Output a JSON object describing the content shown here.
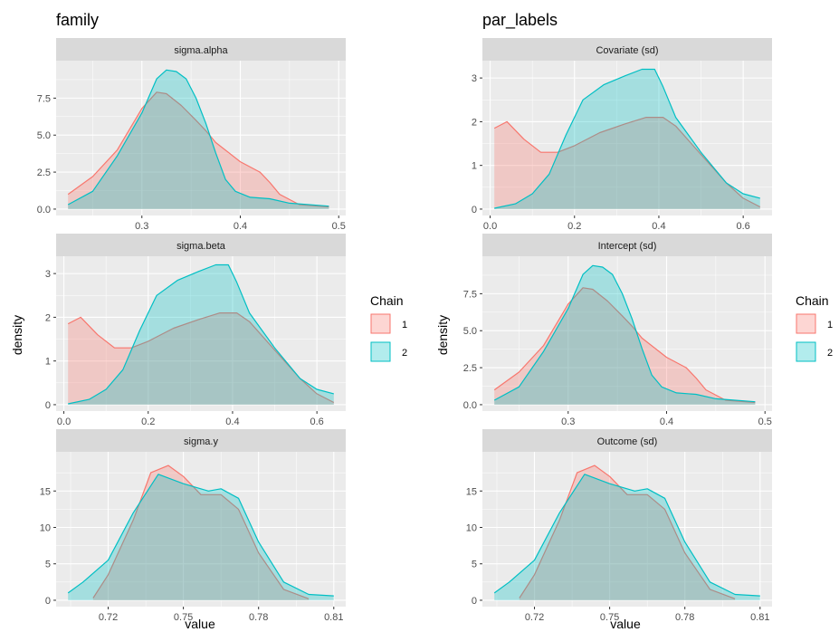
{
  "plots": [
    {
      "title": "family",
      "ylabel": "density",
      "xlabel": "value"
    },
    {
      "title": "par_labels",
      "ylabel": "density",
      "xlabel": "value"
    }
  ],
  "legend": {
    "title": "Chain",
    "entries": [
      {
        "label": "1",
        "fill": "#F8766D",
        "line": "#F8766D"
      },
      {
        "label": "2",
        "fill": "#00BFC4",
        "line": "#00BFC4"
      }
    ]
  },
  "colors": {
    "panel_bg": "#EBEBEB",
    "strip_bg": "#D9D9D9",
    "grid": "#FFFFFF",
    "chain1": "#F8766D",
    "chain2": "#00BFC4",
    "fill_alpha": 0.3
  },
  "chart_data": [
    {
      "type": "area",
      "plot": "family",
      "facet": "sigma.alpha",
      "xlim": [
        0.225,
        0.495
      ],
      "ylim": [
        0,
        9.6
      ],
      "xticks": [
        0.3,
        0.4,
        0.5
      ],
      "xtick_labels": [
        "0.3",
        "0.4",
        "0.5"
      ],
      "yticks": [
        0,
        2.5,
        5,
        7.5
      ],
      "ytick_labels": [
        "0.0",
        "2.5",
        "5.0",
        "7.5"
      ],
      "series": [
        {
          "name": "1",
          "x": [
            0.225,
            0.25,
            0.275,
            0.3,
            0.315,
            0.325,
            0.34,
            0.355,
            0.365,
            0.375,
            0.4,
            0.42,
            0.43,
            0.44,
            0.46,
            0.49
          ],
          "y": [
            1.0,
            2.2,
            4.0,
            6.8,
            7.9,
            7.8,
            7.0,
            6.0,
            5.3,
            4.5,
            3.2,
            2.5,
            1.8,
            1.0,
            0.3,
            0.15
          ]
        },
        {
          "name": "2",
          "x": [
            0.225,
            0.25,
            0.275,
            0.3,
            0.315,
            0.325,
            0.335,
            0.345,
            0.355,
            0.365,
            0.375,
            0.385,
            0.395,
            0.41,
            0.43,
            0.45,
            0.49
          ],
          "y": [
            0.3,
            1.2,
            3.6,
            6.5,
            8.8,
            9.4,
            9.3,
            8.8,
            7.5,
            5.8,
            3.8,
            2.0,
            1.2,
            0.8,
            0.7,
            0.4,
            0.2
          ]
        }
      ]
    },
    {
      "type": "area",
      "plot": "par_labels",
      "facet": "Covariate (sd)",
      "xlim": [
        0.01,
        0.64
      ],
      "ylim": [
        0,
        3.25
      ],
      "xticks": [
        0,
        0.2,
        0.4,
        0.6
      ],
      "xtick_labels": [
        "0.0",
        "0.2",
        "0.4",
        "0.6"
      ],
      "yticks": [
        0,
        1,
        2,
        3
      ],
      "ytick_labels": [
        "0",
        "1",
        "2",
        "3"
      ],
      "series": [
        {
          "name": "1",
          "x": [
            0.01,
            0.04,
            0.08,
            0.12,
            0.16,
            0.2,
            0.26,
            0.32,
            0.37,
            0.41,
            0.44,
            0.5,
            0.56,
            0.6,
            0.64
          ],
          "y": [
            1.85,
            2.0,
            1.6,
            1.3,
            1.3,
            1.45,
            1.75,
            1.95,
            2.1,
            2.1,
            1.9,
            1.25,
            0.6,
            0.25,
            0.05
          ]
        },
        {
          "name": "2",
          "x": [
            0.01,
            0.06,
            0.1,
            0.14,
            0.18,
            0.22,
            0.27,
            0.32,
            0.36,
            0.39,
            0.41,
            0.44,
            0.5,
            0.56,
            0.6,
            0.64
          ],
          "y": [
            0.02,
            0.12,
            0.35,
            0.8,
            1.7,
            2.5,
            2.85,
            3.05,
            3.2,
            3.2,
            2.8,
            2.1,
            1.3,
            0.6,
            0.35,
            0.25
          ]
        }
      ]
    },
    {
      "type": "area",
      "plot": "family",
      "facet": "sigma.beta",
      "xlim": [
        0.01,
        0.64
      ],
      "ylim": [
        0,
        3.25
      ],
      "xticks": [
        0,
        0.2,
        0.4,
        0.6
      ],
      "xtick_labels": [
        "0.0",
        "0.2",
        "0.4",
        "0.6"
      ],
      "yticks": [
        0,
        1,
        2,
        3
      ],
      "ytick_labels": [
        "0",
        "1",
        "2",
        "3"
      ],
      "series": [
        {
          "name": "1",
          "x": [
            0.01,
            0.04,
            0.08,
            0.12,
            0.16,
            0.2,
            0.26,
            0.32,
            0.37,
            0.41,
            0.44,
            0.5,
            0.56,
            0.6,
            0.64
          ],
          "y": [
            1.85,
            2.0,
            1.6,
            1.3,
            1.3,
            1.45,
            1.75,
            1.95,
            2.1,
            2.1,
            1.9,
            1.25,
            0.6,
            0.25,
            0.05
          ]
        },
        {
          "name": "2",
          "x": [
            0.01,
            0.06,
            0.1,
            0.14,
            0.18,
            0.22,
            0.27,
            0.32,
            0.36,
            0.39,
            0.41,
            0.44,
            0.5,
            0.56,
            0.6,
            0.64
          ],
          "y": [
            0.02,
            0.12,
            0.35,
            0.8,
            1.7,
            2.5,
            2.85,
            3.05,
            3.2,
            3.2,
            2.8,
            2.1,
            1.3,
            0.6,
            0.35,
            0.25
          ]
        }
      ]
    },
    {
      "type": "area",
      "plot": "par_labels",
      "facet": "Intercept (sd)",
      "xlim": [
        0.225,
        0.495
      ],
      "ylim": [
        0,
        9.6
      ],
      "xticks": [
        0.3,
        0.4,
        0.5
      ],
      "xtick_labels": [
        "0.3",
        "0.4",
        "0.5"
      ],
      "yticks": [
        0,
        2.5,
        5,
        7.5
      ],
      "ytick_labels": [
        "0.0",
        "2.5",
        "5.0",
        "7.5"
      ],
      "series": [
        {
          "name": "1",
          "x": [
            0.225,
            0.25,
            0.275,
            0.3,
            0.315,
            0.325,
            0.34,
            0.355,
            0.365,
            0.375,
            0.4,
            0.42,
            0.43,
            0.44,
            0.46,
            0.49
          ],
          "y": [
            1.0,
            2.2,
            4.0,
            6.8,
            7.9,
            7.8,
            7.0,
            6.0,
            5.3,
            4.5,
            3.2,
            2.5,
            1.8,
            1.0,
            0.3,
            0.15
          ]
        },
        {
          "name": "2",
          "x": [
            0.225,
            0.25,
            0.275,
            0.3,
            0.315,
            0.325,
            0.335,
            0.345,
            0.355,
            0.365,
            0.375,
            0.385,
            0.395,
            0.41,
            0.43,
            0.45,
            0.49
          ],
          "y": [
            0.3,
            1.2,
            3.6,
            6.5,
            8.8,
            9.4,
            9.3,
            8.8,
            7.5,
            5.8,
            3.8,
            2.0,
            1.2,
            0.8,
            0.7,
            0.4,
            0.2
          ]
        }
      ]
    },
    {
      "type": "area",
      "plot": "family",
      "facet": "sigma.y",
      "xlim": [
        0.704,
        0.81
      ],
      "ylim": [
        0,
        19.5
      ],
      "xticks": [
        0.72,
        0.75,
        0.78,
        0.81
      ],
      "xtick_labels": [
        "0.72",
        "0.75",
        "0.78",
        "0.81"
      ],
      "yticks": [
        0,
        5,
        10,
        15
      ],
      "ytick_labels": [
        "0",
        "5",
        "10",
        "15"
      ],
      "series": [
        {
          "name": "1",
          "x": [
            0.714,
            0.72,
            0.73,
            0.737,
            0.744,
            0.75,
            0.757,
            0.765,
            0.772,
            0.78,
            0.79,
            0.8
          ],
          "y": [
            0.3,
            3.5,
            11,
            17.5,
            18.5,
            17,
            14.5,
            14.5,
            12.5,
            6.5,
            1.5,
            0.2
          ]
        },
        {
          "name": "2",
          "x": [
            0.704,
            0.71,
            0.72,
            0.73,
            0.74,
            0.75,
            0.76,
            0.765,
            0.772,
            0.78,
            0.79,
            0.8,
            0.81
          ],
          "y": [
            1.0,
            2.5,
            5.5,
            12,
            17.3,
            16,
            15,
            15.3,
            14,
            8,
            2.5,
            0.8,
            0.6
          ]
        }
      ]
    },
    {
      "type": "area",
      "plot": "par_labels",
      "facet": "Outcome (sd)",
      "xlim": [
        0.704,
        0.81
      ],
      "ylim": [
        0,
        19.5
      ],
      "xticks": [
        0.72,
        0.75,
        0.78,
        0.81
      ],
      "xtick_labels": [
        "0.72",
        "0.75",
        "0.78",
        "0.81"
      ],
      "yticks": [
        0,
        5,
        10,
        15
      ],
      "ytick_labels": [
        "0",
        "5",
        "10",
        "15"
      ],
      "series": [
        {
          "name": "1",
          "x": [
            0.714,
            0.72,
            0.73,
            0.737,
            0.744,
            0.75,
            0.757,
            0.765,
            0.772,
            0.78,
            0.79,
            0.8
          ],
          "y": [
            0.3,
            3.5,
            11,
            17.5,
            18.5,
            17,
            14.5,
            14.5,
            12.5,
            6.5,
            1.5,
            0.2
          ]
        },
        {
          "name": "2",
          "x": [
            0.704,
            0.71,
            0.72,
            0.73,
            0.74,
            0.75,
            0.76,
            0.765,
            0.772,
            0.78,
            0.79,
            0.8,
            0.81
          ],
          "y": [
            1.0,
            2.5,
            5.5,
            12,
            17.3,
            16,
            15,
            15.3,
            14,
            8,
            2.5,
            0.8,
            0.6
          ]
        }
      ]
    }
  ]
}
